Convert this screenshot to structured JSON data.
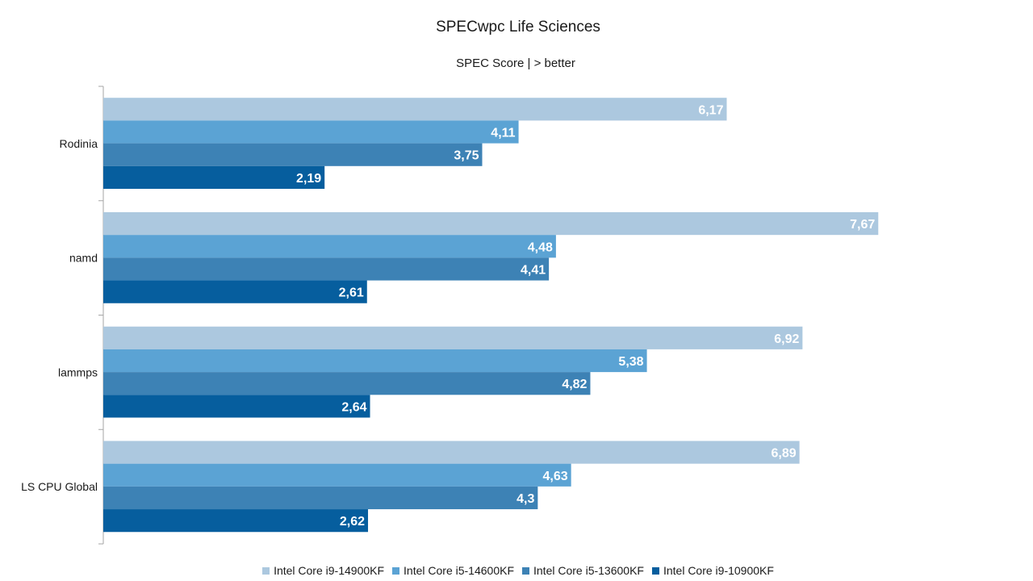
{
  "chart_data": {
    "type": "bar",
    "orientation": "horizontal",
    "title": "SPECwpc Life Sciences",
    "subtitle": "SPEC Score | > better",
    "xlabel": "",
    "ylabel": "",
    "xlim": [
      0,
      9
    ],
    "grid": false,
    "legend_position": "bottom",
    "categories": [
      "Rodinia",
      "namd",
      "lammps",
      "LS CPU Global"
    ],
    "series": [
      {
        "name": "Intel Core i9-14900KF",
        "color": "#acc8df",
        "values": [
          6.17,
          7.67,
          6.92,
          6.89
        ],
        "labels": [
          "6,17",
          "7,67",
          "6,92",
          "6,89"
        ]
      },
      {
        "name": "Intel Core i5-14600KF",
        "color": "#5ba3d4",
        "values": [
          4.11,
          4.48,
          5.38,
          4.63
        ],
        "labels": [
          "4,11",
          "4,48",
          "5,38",
          "4,63"
        ]
      },
      {
        "name": "Intel Core i5-13600KF",
        "color": "#3d82b5",
        "values": [
          3.75,
          4.41,
          4.82,
          4.3
        ],
        "labels": [
          "3,75",
          "4,41",
          "4,82",
          "4,3"
        ]
      },
      {
        "name": "Intel Core i9-10900KF",
        "color": "#065e9e",
        "values": [
          2.19,
          2.61,
          2.64,
          2.62
        ],
        "labels": [
          "2,19",
          "2,61",
          "2,64",
          "2,62"
        ]
      }
    ]
  }
}
